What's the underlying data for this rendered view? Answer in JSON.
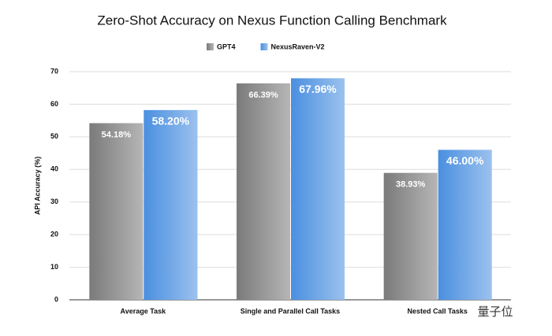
{
  "chart_data": {
    "type": "bar",
    "title": "Zero-Shot Accuracy on Nexus Function Calling Benchmark",
    "ylabel": "API Accuracy (%)",
    "categories": [
      "Average Task",
      "Single and Parallel Call Tasks",
      "Nested Call Tasks"
    ],
    "series": [
      {
        "name": "GPT4",
        "color": "#7a7a7a",
        "values": [
          54.18,
          66.39,
          38.93
        ],
        "value_labels": [
          "54.18%",
          "66.39%",
          "38.93%"
        ]
      },
      {
        "name": "NexusRaven-V2",
        "color": "#4a8fe0",
        "values": [
          58.2,
          67.96,
          46.0
        ],
        "value_labels": [
          "58.20%",
          "67.96%",
          "46.00%"
        ]
      }
    ],
    "ylim": [
      0,
      70
    ],
    "yticks": [
      0,
      10,
      20,
      30,
      40,
      50,
      60,
      70
    ],
    "grid": true,
    "legend": "top",
    "watermark": "量子位"
  }
}
